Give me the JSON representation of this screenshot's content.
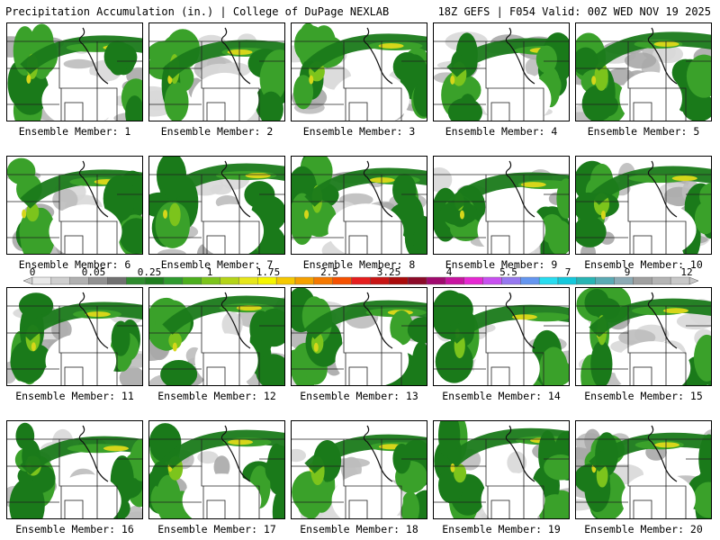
{
  "header": {
    "left": "Precipitation Accumulation (in.) | College of DuPage NEXLAB",
    "right": "18Z GEFS | F054 Valid: 00Z WED NOV 19 2025"
  },
  "panels": [
    {
      "label": "Ensemble Member: 1"
    },
    {
      "label": "Ensemble Member: 2"
    },
    {
      "label": "Ensemble Member: 3"
    },
    {
      "label": "Ensemble Member: 4"
    },
    {
      "label": "Ensemble Member: 5"
    },
    {
      "label": "Ensemble Member: 6"
    },
    {
      "label": "Ensemble Member: 7"
    },
    {
      "label": "Ensemble Member: 8"
    },
    {
      "label": "Ensemble Member: 9"
    },
    {
      "label": "Ensemble Member: 10"
    },
    {
      "label": "Ensemble Member: 11"
    },
    {
      "label": "Ensemble Member: 12"
    },
    {
      "label": "Ensemble Member: 13"
    },
    {
      "label": "Ensemble Member: 14"
    },
    {
      "label": "Ensemble Member: 15"
    },
    {
      "label": "Ensemble Member: 16"
    },
    {
      "label": "Ensemble Member: 17"
    },
    {
      "label": "Ensemble Member: 18"
    },
    {
      "label": "Ensemble Member: 19"
    },
    {
      "label": "Ensemble Member: 20"
    }
  ],
  "colorbar": {
    "ticks": [
      "0",
      "0.05",
      "0.25",
      "1",
      "1.75",
      "2.5",
      "3.25",
      "4",
      "5.5",
      "7",
      "9",
      "12"
    ],
    "colors": [
      "#e8e8e8",
      "#cfcfcf",
      "#b0b0b0",
      "#909090",
      "#707070",
      "#2e8b2e",
      "#1e7d1e",
      "#2f9a2f",
      "#4caf1e",
      "#7cc41c",
      "#b4d418",
      "#e6e61a",
      "#f5f500",
      "#f5c800",
      "#f5a000",
      "#f57800",
      "#f55000",
      "#e61e1e",
      "#c81414",
      "#aa0a0a",
      "#8c0a28",
      "#a00a6e",
      "#c814a0",
      "#e628d2",
      "#c850f0",
      "#9678f0",
      "#6496f0",
      "#28dcf0",
      "#14c8dc",
      "#28b4b4",
      "#5aaab4",
      "#8caab4",
      "#a0a0a0",
      "#b4b4b4",
      "#c8c8c8"
    ],
    "colors_note": "",
    "heavy_band_colors": [
      "#1a7a1a",
      "#3aa12a",
      "#7cc41c",
      "#d6d61a",
      "#f5f000"
    ]
  }
}
